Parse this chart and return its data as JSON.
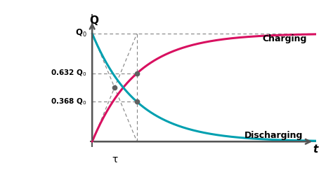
{
  "background_color": "#ffffff",
  "charging_color": "#d81060",
  "discharging_color": "#00a0b0",
  "dashed_color": "#888888",
  "dot_color": "#606060",
  "axis_color": "#555555",
  "tau_value": 1.0,
  "t_max": 5.0,
  "Q0": 1.0,
  "Q0_label": "Q$_0$",
  "tau_label": "τ",
  "t_label": "t",
  "Q_label": "Q",
  "charging_label": "Charging",
  "discharging_label": "Discharging",
  "Q632_label": "0.632 Q$_0$",
  "Q368_label": "0.368 Q$_0$",
  "figsize": [
    4.74,
    2.5
  ],
  "dpi": 100
}
